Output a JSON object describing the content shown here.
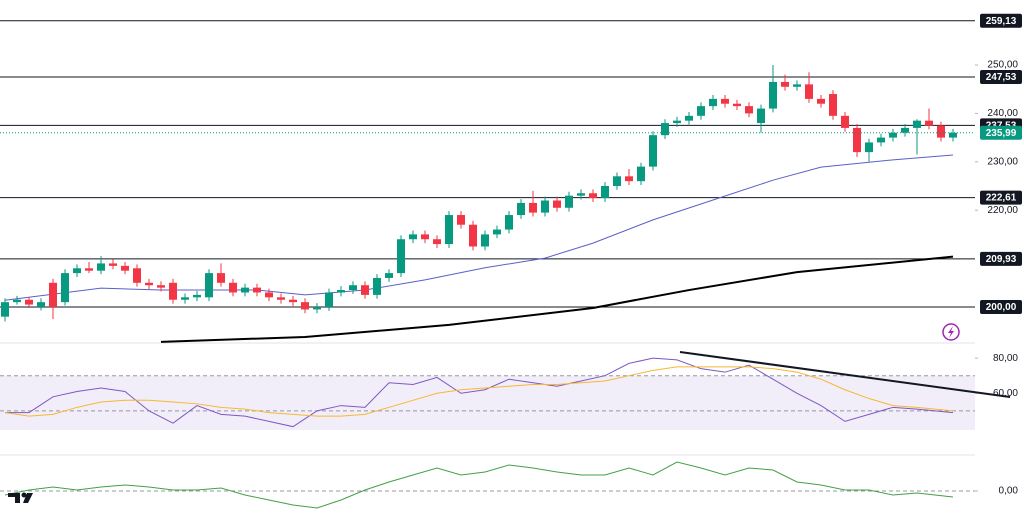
{
  "chart_data": [
    {
      "type": "candlestick",
      "up_color": "#089981",
      "down_color": "#f23645",
      "candles": [
        [
          198,
          201.8,
          197,
          201
        ],
        [
          201,
          202.3,
          200.5,
          201.5
        ],
        [
          201.5,
          202,
          199.8,
          200.5
        ],
        [
          200,
          201.8,
          199.3,
          201
        ],
        [
          205,
          205.8,
          197.5,
          200
        ],
        [
          201,
          207.8,
          200.3,
          207
        ],
        [
          207,
          208.8,
          206.2,
          208
        ],
        [
          208,
          209.3,
          207,
          207.5
        ],
        [
          207.5,
          210.5,
          206.8,
          209
        ],
        [
          209,
          209.8,
          207.8,
          208.5
        ],
        [
          208.5,
          209.3,
          206.8,
          207.5
        ],
        [
          208,
          208.8,
          204.2,
          205
        ],
        [
          205,
          205.8,
          203.7,
          204.5
        ],
        [
          204.5,
          205.3,
          203.2,
          204
        ],
        [
          205,
          205.8,
          200.7,
          201.5
        ],
        [
          201.5,
          202.8,
          200.7,
          202
        ],
        [
          202,
          203.3,
          201.2,
          202.5
        ],
        [
          202,
          207.8,
          201.2,
          207
        ],
        [
          207,
          209,
          204.2,
          205
        ],
        [
          205,
          205.8,
          202.2,
          203
        ],
        [
          203,
          204.8,
          202.2,
          204
        ],
        [
          204,
          204.8,
          202.2,
          203
        ],
        [
          203,
          203.8,
          201.2,
          202
        ],
        [
          202,
          202.8,
          200.7,
          201.5
        ],
        [
          201.5,
          202.3,
          200.2,
          201
        ],
        [
          201,
          201.8,
          198.7,
          199.5
        ],
        [
          199.5,
          200.8,
          198.7,
          200
        ],
        [
          200,
          203.8,
          199.2,
          203
        ],
        [
          203,
          204.3,
          202.2,
          203.5
        ],
        [
          203.5,
          205.3,
          202.7,
          204.5
        ],
        [
          204.5,
          205.3,
          201.7,
          202.5
        ],
        [
          202.5,
          206.8,
          201.7,
          206
        ],
        [
          206,
          207.8,
          205.2,
          207
        ],
        [
          207,
          214.8,
          206.2,
          214
        ],
        [
          214,
          215.8,
          213.2,
          215
        ],
        [
          215,
          215.8,
          213.2,
          214
        ],
        [
          214,
          214.8,
          212.2,
          213
        ],
        [
          213,
          219.8,
          212.2,
          219
        ],
        [
          219,
          219.8,
          216.2,
          217
        ],
        [
          217,
          217.8,
          211.7,
          212.5
        ],
        [
          212.5,
          215.8,
          211.7,
          215
        ],
        [
          215,
          216.8,
          214.2,
          216
        ],
        [
          216,
          219.8,
          215.2,
          219
        ],
        [
          219,
          222.3,
          218.2,
          221.5
        ],
        [
          221.5,
          224,
          218.7,
          219.5
        ],
        [
          219.5,
          222.8,
          218.7,
          222
        ],
        [
          222,
          222.8,
          219.7,
          220.5
        ],
        [
          220.5,
          223.8,
          219.7,
          223
        ],
        [
          223,
          224.3,
          222.2,
          223.5
        ],
        [
          223.5,
          224.3,
          221.7,
          222.5
        ],
        [
          222.5,
          225.8,
          221.7,
          225
        ],
        [
          225,
          227.8,
          224.2,
          227
        ],
        [
          227,
          228.5,
          225.2,
          226
        ],
        [
          226,
          229.8,
          225.2,
          229
        ],
        [
          229,
          236.3,
          228.2,
          235.5
        ],
        [
          235.5,
          238.8,
          234.7,
          238
        ],
        [
          238,
          239.3,
          237.2,
          238.5
        ],
        [
          238.5,
          240.3,
          237.7,
          239.5
        ],
        [
          239.5,
          242.3,
          238.7,
          241.5
        ],
        [
          241.5,
          243.8,
          240.7,
          243
        ],
        [
          243,
          243.8,
          241.2,
          242
        ],
        [
          242,
          242.8,
          240.7,
          241.5
        ],
        [
          241.5,
          242.3,
          239.2,
          240
        ],
        [
          238,
          241.8,
          236,
          241
        ],
        [
          241,
          250,
          240.2,
          246.5
        ],
        [
          246.5,
          248,
          244.7,
          245.5
        ],
        [
          245.5,
          246.8,
          244.7,
          246
        ],
        [
          246,
          248.5,
          242.2,
          243
        ],
        [
          243,
          243.8,
          241.2,
          242
        ],
        [
          244,
          244.8,
          238.7,
          239.5
        ],
        [
          239.5,
          240.3,
          236.2,
          237
        ],
        [
          237,
          237.8,
          231,
          232
        ],
        [
          232,
          234.8,
          230,
          234
        ],
        [
          234,
          235.8,
          233.2,
          235
        ],
        [
          235,
          236.8,
          234.2,
          236
        ],
        [
          236,
          237.8,
          235.2,
          237
        ],
        [
          237,
          238.8,
          231.5,
          238.5
        ],
        [
          238.5,
          241,
          236.7,
          237.5
        ],
        [
          237.5,
          238.3,
          234.2,
          235
        ],
        [
          235,
          236.8,
          234.2,
          236
        ]
      ],
      "series": [
        {
          "color": "#5b5fc7",
          "x": [
            0,
            8,
            13,
            21,
            25,
            30,
            35,
            40,
            45,
            49,
            54,
            59,
            64,
            68,
            74,
            79
          ],
          "values": [
            201.4,
            203.9,
            203.5,
            203.5,
            202.5,
            203.5,
            205.6,
            208.1,
            210.1,
            213.2,
            218,
            222.1,
            226.2,
            228.9,
            230.4,
            231.4
          ]
        },
        {
          "color": "#000000",
          "x": [
            13,
            25,
            37,
            49,
            57,
            66,
            79
          ],
          "values": [
            192.8,
            193.8,
            196.3,
            199.8,
            203.5,
            207.2,
            210.4
          ]
        }
      ],
      "ylim": [
        193.18,
        263.43
      ],
      "yticks": [
        {
          "value": 250,
          "label": "250,00"
        },
        {
          "value": 240,
          "label": "240,00"
        },
        {
          "value": 230,
          "label": "230,00"
        },
        {
          "value": 220,
          "label": "220,00"
        }
      ],
      "levels": [
        {
          "value": 259.13,
          "label": "259,13"
        },
        {
          "value": 247.53,
          "label": "247,53"
        },
        {
          "value": 237.53,
          "label": "237,53"
        },
        {
          "value": 222.61,
          "label": "222,61"
        },
        {
          "value": 209.93,
          "label": "209,93"
        },
        {
          "value": 200,
          "label": "200,00"
        }
      ],
      "last": {
        "value": 235.99,
        "label": "235,99"
      }
    },
    {
      "type": "line",
      "series": [
        {
          "color": "#7e57c2",
          "x": [
            0,
            2,
            4,
            6,
            8,
            10,
            12,
            14,
            16,
            18,
            20,
            22,
            24,
            26,
            28,
            30,
            32,
            34,
            36,
            38,
            40,
            42,
            44,
            46,
            48,
            50,
            52,
            54,
            56,
            58,
            60,
            62,
            64,
            66,
            68,
            70,
            72,
            74,
            76,
            79
          ],
          "values": [
            49,
            49,
            58,
            61,
            63,
            61,
            50,
            43,
            53,
            48,
            47,
            44,
            41,
            50,
            53,
            52,
            66,
            65,
            69,
            60,
            62,
            68,
            66,
            64,
            67,
            70,
            77,
            80,
            79,
            74,
            72,
            76,
            68,
            60,
            53,
            44,
            48,
            52,
            51,
            49
          ]
        },
        {
          "color": "#f7b731",
          "x": [
            0,
            2,
            4,
            6,
            8,
            10,
            12,
            14,
            16,
            18,
            20,
            22,
            24,
            26,
            28,
            30,
            32,
            34,
            36,
            38,
            40,
            42,
            44,
            46,
            48,
            50,
            52,
            54,
            56,
            58,
            60,
            62,
            64,
            66,
            68,
            70,
            72,
            74,
            76,
            79
          ],
          "values": [
            49,
            47,
            48,
            52,
            55,
            56,
            56,
            55,
            54,
            52,
            51,
            49,
            48,
            47,
            47,
            48,
            52,
            56,
            60,
            62,
            63,
            64,
            65,
            65,
            66,
            67,
            70,
            73,
            75,
            75,
            75,
            75,
            74,
            72,
            68,
            62,
            57,
            53,
            52,
            50
          ]
        }
      ],
      "ylim": [
        39.1,
        88.6
      ],
      "yticks": [
        {
          "value": 80,
          "label": "80,00"
        },
        {
          "value": 60,
          "label": "60,00"
        }
      ],
      "levels": [
        70,
        50
      ]
    },
    {
      "type": "line",
      "series": [
        {
          "color": "#43a047",
          "x": [
            0,
            2,
            4,
            6,
            8,
            10,
            12,
            14,
            16,
            18,
            20,
            22,
            24,
            26,
            28,
            30,
            32,
            34,
            36,
            38,
            40,
            42,
            44,
            46,
            48,
            50,
            52,
            54,
            56,
            58,
            60,
            62,
            64,
            66,
            68,
            70,
            72,
            74,
            76,
            79
          ],
          "values": [
            -0.4,
            0.1,
            0.4,
            0.1,
            0.4,
            0.6,
            0.4,
            0.1,
            0.1,
            0.3,
            -0.4,
            -0.9,
            -1.4,
            -1.7,
            -0.9,
            0.1,
            0.9,
            1.6,
            2.3,
            1.6,
            1.9,
            2.6,
            2.3,
            1.9,
            1.6,
            1.6,
            2.3,
            1.6,
            2.9,
            2.3,
            1.6,
            2.3,
            2.1,
            0.9,
            0.6,
            0.1,
            0.1,
            -0.4,
            -0.2,
            -0.6
          ]
        }
      ],
      "ylim": [
        -2.4,
        3.6
      ],
      "yticks": [
        {
          "value": 0,
          "label": "0,00"
        }
      ],
      "levels": [
        0
      ]
    }
  ]
}
